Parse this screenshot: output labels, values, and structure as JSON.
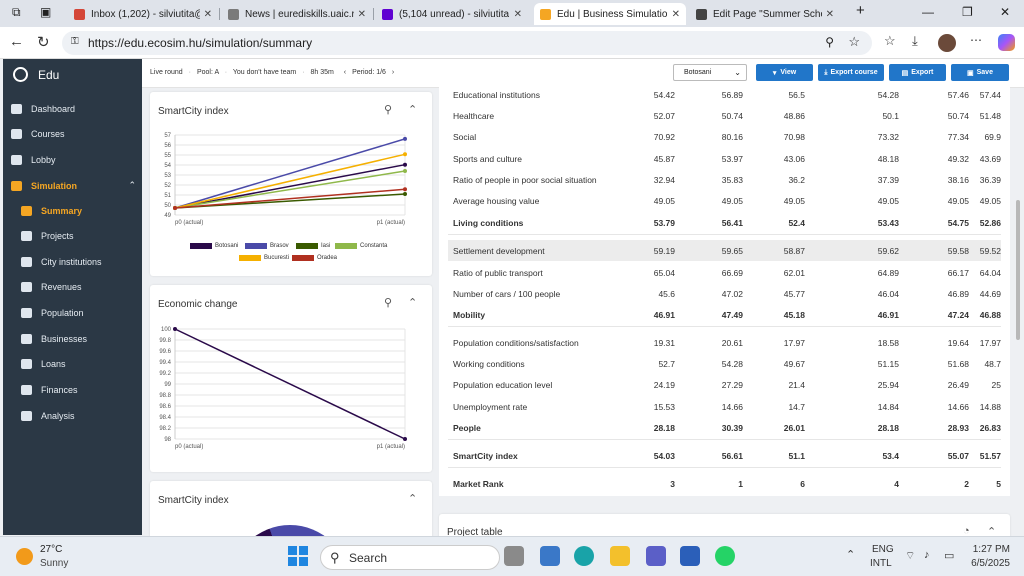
{
  "browser": {
    "tabs": [
      {
        "label": "Inbox (1,202) - silviutita@",
        "icon": "gmail-icon",
        "color": "#d44638"
      },
      {
        "label": "News | eurediskills.uaic.ro",
        "icon": "globe-icon",
        "color": "#7a7a7a"
      },
      {
        "label": "(5,104 unread) - silviutita",
        "icon": "yahoo-mail-icon",
        "color": "#5f01d1"
      },
      {
        "label": "Edu | Business Simulation",
        "icon": "ecosim-icon",
        "color": "#f5a623"
      },
      {
        "label": "Edit Page \"Summer Schoo",
        "icon": "wordpress-icon",
        "color": "#444"
      }
    ],
    "url": "https://edu.ecosim.hu/simulation/summary"
  },
  "sidebar": {
    "brand": "Edu",
    "items": [
      {
        "label": "Dashboard",
        "icon": "home-icon"
      },
      {
        "label": "Courses",
        "icon": "courses-icon"
      },
      {
        "label": "Lobby",
        "icon": "users-icon"
      },
      {
        "label": "Simulation",
        "icon": "chart-icon"
      },
      {
        "label": "Summary",
        "icon": "pie-icon"
      },
      {
        "label": "Projects",
        "icon": "projects-icon"
      },
      {
        "label": "City institutions",
        "icon": "building-icon"
      },
      {
        "label": "Revenues",
        "icon": "money-icon"
      },
      {
        "label": "Population",
        "icon": "people-icon"
      },
      {
        "label": "Businesses",
        "icon": "briefcase-icon"
      },
      {
        "label": "Loans",
        "icon": "loan-icon"
      },
      {
        "label": "Finances",
        "icon": "finance-icon"
      },
      {
        "label": "Analysis",
        "icon": "analysis-icon"
      }
    ]
  },
  "simbar": {
    "live": "Live round",
    "pool": "Pool: A",
    "team": "You don't have team",
    "time": "8h 35m",
    "period": "Period: 1/6",
    "city": "Botosani",
    "view": "View",
    "export_course": "Export course",
    "export": "Export",
    "save": "Save"
  },
  "cards": {
    "smartcity_title": "SmartCity index",
    "economic_title": "Economic change",
    "smartcity2_title": "SmartCity index",
    "project_title": "Project table"
  },
  "chart_data": [
    {
      "type": "line",
      "title": "SmartCity index",
      "x": [
        "p0 (actual)",
        "p1 (actual)"
      ],
      "ylim": [
        49,
        57
      ],
      "yticks": [
        "57",
        "56",
        "55",
        "54",
        "53",
        "52",
        "51",
        "50",
        "49"
      ],
      "series": [
        {
          "name": "Botosani",
          "color": "#2a0a4a",
          "values": [
            49.7,
            54.03
          ]
        },
        {
          "name": "Brasov",
          "color": "#4a4aa8",
          "values": [
            49.7,
            56.61
          ]
        },
        {
          "name": "Iasi",
          "color": "#3a5a00",
          "values": [
            49.7,
            51.1
          ]
        },
        {
          "name": "Constanta",
          "color": "#8fb84a",
          "values": [
            49.7,
            53.4
          ]
        },
        {
          "name": "Bucuresti",
          "color": "#f5b000",
          "values": [
            49.7,
            55.07
          ]
        },
        {
          "name": "Oradea",
          "color": "#b03020",
          "values": [
            49.7,
            51.57
          ]
        }
      ]
    },
    {
      "type": "line",
      "title": "Economic change",
      "x": [
        "p0 (actual)",
        "p1 (actual)"
      ],
      "ylim": [
        98,
        100
      ],
      "yticks": [
        "100",
        "99.8",
        "99.6",
        "99.4",
        "99.2",
        "99",
        "98.8",
        "98.6",
        "98.4",
        "98.2",
        "98"
      ],
      "series": [
        {
          "color": "#2a0a4a",
          "values": [
            100,
            98
          ]
        }
      ]
    }
  ],
  "table": {
    "rows": [
      {
        "label": "Educational institutions",
        "values": [
          "54.42",
          "56.89",
          "56.5",
          "54.28",
          "57.46",
          "57.44"
        ]
      },
      {
        "label": "Healthcare",
        "values": [
          "52.07",
          "50.74",
          "48.86",
          "50.1",
          "50.74",
          "51.48"
        ]
      },
      {
        "label": "Social",
        "values": [
          "70.92",
          "80.16",
          "70.98",
          "73.32",
          "77.34",
          "69.9"
        ]
      },
      {
        "label": "Sports and culture",
        "values": [
          "45.87",
          "53.97",
          "43.06",
          "48.18",
          "49.32",
          "43.69"
        ]
      },
      {
        "label": "Ratio of people in poor social situation",
        "values": [
          "32.94",
          "35.83",
          "36.2",
          "37.39",
          "38.16",
          "36.39"
        ]
      },
      {
        "label": "Average housing value",
        "values": [
          "49.05",
          "49.05",
          "49.05",
          "49.05",
          "49.05",
          "49.05"
        ]
      },
      {
        "label": "Living conditions",
        "values": [
          "53.79",
          "56.41",
          "52.4",
          "53.43",
          "54.75",
          "52.86"
        ],
        "bold": true
      },
      {
        "label": "Settlement development",
        "values": [
          "59.19",
          "59.65",
          "58.87",
          "59.62",
          "59.58",
          "59.52"
        ],
        "highlight": true
      },
      {
        "label": "Ratio of public transport",
        "values": [
          "65.04",
          "66.69",
          "62.01",
          "64.89",
          "66.17",
          "64.04"
        ]
      },
      {
        "label": "Number of cars / 100 people",
        "values": [
          "45.6",
          "47.02",
          "45.77",
          "46.04",
          "46.89",
          "44.69"
        ]
      },
      {
        "label": "Mobility",
        "values": [
          "46.91",
          "47.49",
          "45.18",
          "46.91",
          "47.24",
          "46.88"
        ],
        "bold": true
      },
      {
        "label": "Population conditions/satisfaction",
        "values": [
          "19.31",
          "20.61",
          "17.97",
          "18.58",
          "19.64",
          "17.97"
        ]
      },
      {
        "label": "Working conditions",
        "values": [
          "52.7",
          "54.28",
          "49.67",
          "51.15",
          "51.68",
          "48.7"
        ]
      },
      {
        "label": "Population education level",
        "values": [
          "24.19",
          "27.29",
          "21.4",
          "25.94",
          "26.49",
          "25"
        ]
      },
      {
        "label": "Unemployment rate",
        "values": [
          "15.53",
          "14.66",
          "14.7",
          "14.84",
          "14.66",
          "14.88"
        ]
      },
      {
        "label": "People",
        "values": [
          "28.18",
          "30.39",
          "26.01",
          "28.18",
          "28.93",
          "26.83"
        ],
        "bold": true
      },
      {
        "label": "SmartCity index",
        "values": [
          "54.03",
          "56.61",
          "51.1",
          "53.4",
          "55.07",
          "51.57"
        ],
        "bold": true
      },
      {
        "label": "Market Rank",
        "values": [
          "3",
          "1",
          "6",
          "4",
          "2",
          "5"
        ],
        "bold": true
      }
    ]
  },
  "taskbar": {
    "temp": "27°C",
    "weather": "Sunny",
    "search_placeholder": "Search",
    "lang1": "ENG",
    "lang2": "INTL",
    "time": "1:27 PM",
    "date": "6/5/2025"
  }
}
